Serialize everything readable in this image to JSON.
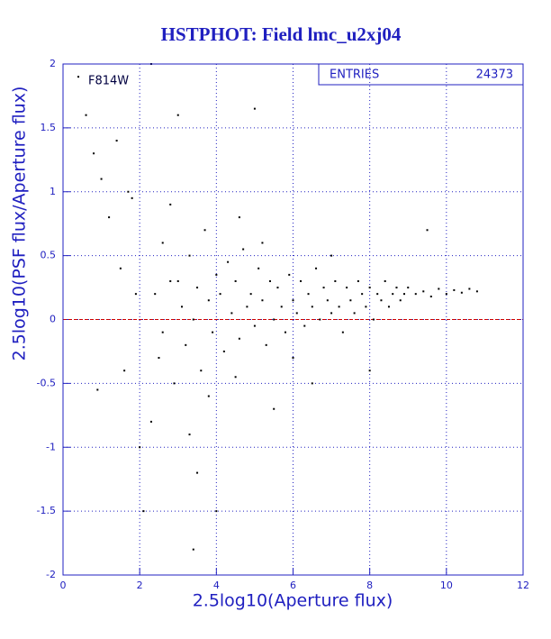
{
  "chart_data": {
    "type": "scatter",
    "title": "HSTPHOT: Field lmc_u2xj04",
    "xlabel": "2.5log10(Aperture flux)",
    "ylabel": "2.5log10(PSF flux/Aperture flux)",
    "annotation": "F814W",
    "stats": {
      "label": "ENTRIES",
      "value": 24373
    },
    "xlim": [
      0,
      12
    ],
    "ylim": [
      -2,
      2
    ],
    "xticks": [
      0,
      2,
      4,
      6,
      8,
      10,
      12
    ],
    "yticks": [
      -2,
      -1.5,
      -1,
      -0.5,
      0,
      0.5,
      1,
      1.5,
      2
    ],
    "grid": true,
    "reference_line": 0,
    "reference_color": "#cc0000",
    "color": "#000000",
    "x": [
      0.4,
      0.6,
      0.8,
      1.0,
      1.2,
      1.4,
      1.5,
      1.7,
      1.8,
      1.9,
      0.9,
      1.6,
      2.0,
      2.1,
      2.3,
      2.5,
      2.6,
      2.8,
      2.9,
      3.0,
      3.1,
      3.2,
      3.3,
      3.4,
      3.5,
      3.6,
      3.7,
      3.8,
      3.9,
      4.0,
      3.5,
      3.3,
      4.1,
      4.2,
      4.3,
      4.4,
      4.5,
      4.6,
      4.7,
      4.8,
      4.9,
      5.0,
      5.1,
      5.2,
      5.3,
      5.4,
      5.5,
      5.6,
      5.7,
      5.8,
      5.9,
      6.0,
      6.1,
      6.2,
      6.3,
      6.4,
      6.5,
      6.6,
      6.7,
      6.8,
      6.9,
      7.0,
      7.1,
      7.2,
      7.3,
      7.4,
      7.5,
      7.6,
      7.7,
      7.8,
      7.9,
      8.0,
      8.1,
      8.2,
      8.3,
      8.4,
      8.5,
      8.6,
      8.7,
      8.8,
      8.9,
      9.0,
      9.2,
      9.4,
      9.6,
      9.8,
      10.0,
      10.2,
      10.4,
      10.6,
      10.8,
      5.0,
      5.5,
      6.5,
      4.0,
      3.4,
      9.5,
      8.0,
      3.0,
      2.3,
      4.6,
      2.6,
      2.8,
      4.5,
      6.0,
      7.0,
      5.2,
      3.8,
      2.4
    ],
    "values": [
      1.9,
      1.6,
      1.3,
      1.1,
      0.8,
      1.4,
      0.4,
      1.0,
      0.95,
      0.2,
      -0.55,
      -0.4,
      -1.0,
      -1.5,
      -0.8,
      -0.3,
      0.6,
      0.9,
      -0.5,
      0.3,
      0.1,
      -0.2,
      0.5,
      0.0,
      0.25,
      -0.4,
      0.7,
      0.15,
      -0.1,
      0.35,
      -1.2,
      -0.9,
      0.2,
      -0.25,
      0.45,
      0.05,
      0.3,
      -0.15,
      0.55,
      0.1,
      0.2,
      -0.05,
      0.4,
      0.15,
      -0.2,
      0.3,
      0.0,
      0.25,
      0.1,
      -0.1,
      0.35,
      0.15,
      0.05,
      0.3,
      -0.05,
      0.2,
      0.1,
      0.4,
      0.0,
      0.25,
      0.15,
      0.05,
      0.3,
      0.1,
      -0.1,
      0.25,
      0.15,
      0.05,
      0.3,
      0.2,
      0.1,
      0.25,
      0.0,
      0.2,
      0.15,
      0.3,
      0.1,
      0.2,
      0.25,
      0.15,
      0.2,
      0.25,
      0.2,
      0.22,
      0.18,
      0.24,
      0.2,
      0.23,
      0.21,
      0.24,
      0.22,
      1.65,
      -0.7,
      -0.5,
      -1.5,
      -1.8,
      0.7,
      -0.4,
      1.6,
      2.0,
      0.8,
      -0.1,
      0.3,
      -0.45,
      -0.3,
      0.5,
      0.6,
      -0.6,
      0.2
    ]
  }
}
